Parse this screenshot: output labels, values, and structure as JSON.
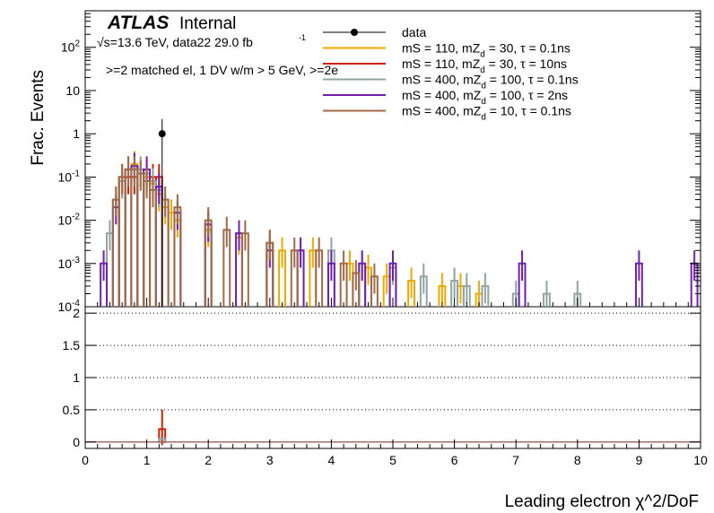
{
  "header": {
    "atlas": "ATLAS",
    "internal": "Internal",
    "energy_lumi_prefix": "√s=13.6 TeV, data22 29.0 fb",
    "lumi_exp": "-1",
    "selection": ">=2 matched el, 1 DV w/m > 5 GeV, >=2e"
  },
  "axes": {
    "top_ylabel": "Frac. Events",
    "xlabel": "Leading electron χ^2/DoF",
    "top_yticks": [
      "10^-4",
      "10^-3",
      "10^-2",
      "10^-1",
      "1",
      "10",
      "10^2"
    ],
    "bottom_yticks": [
      "0",
      "0.5",
      "1",
      "1.5",
      "2"
    ],
    "xticks": [
      "0",
      "1",
      "2",
      "3",
      "4",
      "5",
      "6",
      "7",
      "8",
      "9",
      "10"
    ]
  },
  "legend": {
    "entries": [
      {
        "label": "data",
        "color": "#000000",
        "kind": "marker"
      },
      {
        "label": "mS = 110, mZ",
        "sub": "d",
        "rest": " = 30, τ = 0.1ns",
        "color": "#f0a800",
        "kind": "line"
      },
      {
        "label": "mS = 110, mZ",
        "sub": "d",
        "rest": " = 30, τ = 10ns",
        "color": "#cc2200",
        "kind": "line"
      },
      {
        "label": "mS = 400, mZ",
        "sub": "d",
        "rest": " = 100, τ = 0.1ns",
        "color": "#90a4a4",
        "kind": "line"
      },
      {
        "label": "mS = 400, mZ",
        "sub": "d",
        "rest": " = 100, τ = 2ns",
        "color": "#7020b0",
        "kind": "line"
      },
      {
        "label": "mS = 400, mZ",
        "sub": "d",
        "rest": " = 10, τ = 0.1ns",
        "color": "#a06a48",
        "kind": "line"
      }
    ]
  },
  "chart_data": [
    {
      "type": "histogram",
      "panel": "top",
      "log_y": true,
      "xlim": [
        0,
        10
      ],
      "ylim": [
        0.0001,
        700
      ],
      "bin_width": 0.1,
      "series": [
        {
          "name": "data",
          "color": "#000000",
          "points": [
            {
              "x": 1.25,
              "y": 1.0,
              "err_up": 1.2,
              "err_down": 1.0
            }
          ]
        },
        {
          "name": "mS = 110, mZd = 30, τ = 0.1ns",
          "color": "#f0a800",
          "bins": [
            [
              0.6,
              0.08
            ],
            [
              0.7,
              0.15
            ],
            [
              0.8,
              0.2
            ],
            [
              0.9,
              0.15
            ],
            [
              1.0,
              0.1
            ],
            [
              1.1,
              0.07
            ],
            [
              1.2,
              0.04
            ],
            [
              1.3,
              0.02
            ],
            [
              1.4,
              0.015
            ],
            [
              1.5,
              0.01
            ],
            [
              2.0,
              0.006
            ],
            [
              2.5,
              0.004
            ],
            [
              3.0,
              0.003
            ],
            [
              3.2,
              0.002
            ],
            [
              3.7,
              0.002
            ],
            [
              4.3,
              0.001
            ],
            [
              4.6,
              0.0008
            ],
            [
              4.9,
              0.0005
            ],
            [
              5.3,
              0.0004
            ],
            [
              5.8,
              0.0003
            ],
            [
              6.1,
              0.0003
            ],
            [
              6.4,
              0.0002
            ]
          ]
        },
        {
          "name": "mS = 110, mZd = 30, τ = 10ns",
          "color": "#cc2200",
          "bins": [
            [
              0.6,
              0.1
            ],
            [
              0.7,
              0.1
            ],
            [
              0.8,
              0.1
            ],
            [
              1.1,
              0.1
            ],
            [
              1.2,
              0.1
            ]
          ]
        },
        {
          "name": "mS = 400, mZd = 100, τ = 0.1ns",
          "color": "#90a4a4",
          "bins": [
            [
              0.4,
              0.005
            ],
            [
              0.5,
              0.03
            ],
            [
              0.6,
              0.08
            ],
            [
              0.7,
              0.15
            ],
            [
              0.8,
              0.18
            ],
            [
              0.9,
              0.15
            ],
            [
              1.0,
              0.12
            ],
            [
              1.1,
              0.08
            ],
            [
              1.2,
              0.05
            ],
            [
              1.3,
              0.03
            ],
            [
              1.5,
              0.015
            ],
            [
              2.0,
              0.008
            ],
            [
              2.5,
              0.005
            ],
            [
              3.0,
              0.003
            ],
            [
              3.5,
              0.002
            ],
            [
              4.0,
              0.002
            ],
            [
              4.5,
              0.001
            ],
            [
              5.0,
              0.0008
            ],
            [
              5.5,
              0.0005
            ],
            [
              6.0,
              0.0004
            ],
            [
              6.2,
              0.0003
            ],
            [
              6.5,
              0.0003
            ],
            [
              7.0,
              0.0002
            ],
            [
              7.5,
              0.0002
            ],
            [
              8.0,
              0.0002
            ]
          ]
        },
        {
          "name": "mS = 400, mZd = 100, τ = 2ns",
          "color": "#7020b0",
          "bins": [
            [
              0.3,
              0.001
            ],
            [
              0.5,
              0.02
            ],
            [
              0.7,
              0.15
            ],
            [
              0.8,
              0.18
            ],
            [
              1.0,
              0.15
            ],
            [
              1.2,
              0.06
            ],
            [
              1.5,
              0.015
            ],
            [
              2.0,
              0.008
            ],
            [
              2.5,
              0.005
            ],
            [
              3.0,
              0.002
            ],
            [
              3.5,
              0.002
            ],
            [
              4.0,
              0.001
            ],
            [
              4.5,
              0.001
            ],
            [
              5.0,
              0.001
            ],
            [
              7.1,
              0.001
            ],
            [
              9.0,
              0.001
            ],
            [
              9.9,
              0.001
            ]
          ]
        },
        {
          "name": "mS = 400, mZd = 10, τ = 0.1ns",
          "color": "#a06a48",
          "bins": [
            [
              0.5,
              0.03
            ],
            [
              0.6,
              0.1
            ],
            [
              0.7,
              0.15
            ],
            [
              0.8,
              0.15
            ],
            [
              0.9,
              0.12
            ],
            [
              1.0,
              0.08
            ],
            [
              1.1,
              0.05
            ],
            [
              1.3,
              0.03
            ],
            [
              1.5,
              0.02
            ],
            [
              2.0,
              0.01
            ],
            [
              2.3,
              0.006
            ],
            [
              2.6,
              0.005
            ],
            [
              3.0,
              0.003
            ],
            [
              3.4,
              0.002
            ],
            [
              3.8,
              0.002
            ],
            [
              4.2,
              0.001
            ],
            [
              4.4,
              0.0006
            ],
            [
              4.7,
              0.0005
            ]
          ]
        }
      ]
    },
    {
      "type": "histogram",
      "panel": "bottom",
      "log_y": false,
      "xlim": [
        0,
        10
      ],
      "ylim": [
        -0.1,
        2.1
      ],
      "grid": "dotted at 0.5, 1, 1.5, 2",
      "series": [
        {
          "name": "mS = 110, mZd = 30, τ = 10ns",
          "color": "#cc2200",
          "bins": [
            [
              1.2,
              0.2
            ]
          ],
          "err": 0.3
        },
        {
          "name": "mS = 400, mZd = 100, τ = 0.1ns",
          "color": "#90a4a4",
          "bins": [
            [
              1.2,
              0.05
            ]
          ]
        }
      ]
    }
  ]
}
